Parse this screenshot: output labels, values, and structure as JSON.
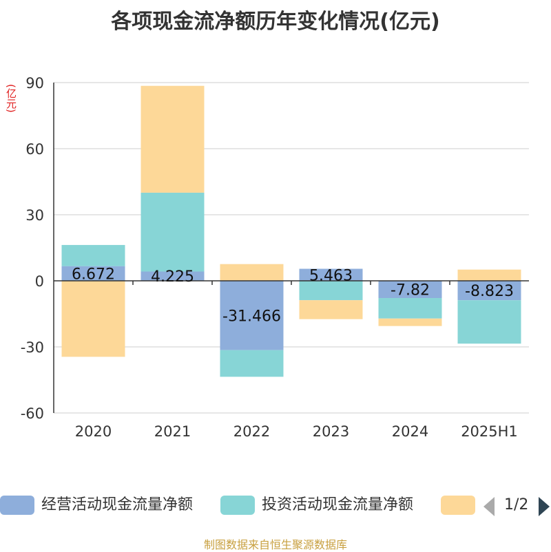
{
  "title": "各项现金流净额历年变化情况(亿元)",
  "unit": "(亿元)",
  "source": "制图数据来自恒生聚源数据库",
  "legend": {
    "items": [
      {
        "label": "经营活动现金流量净额",
        "color": "#8eaedb"
      },
      {
        "label": "投资活动现金流量净额",
        "color": "#87d5d6"
      },
      {
        "label": "",
        "color": "#fdd898"
      }
    ],
    "page": "1/2"
  },
  "chart_data": {
    "type": "bar",
    "stacked": true,
    "categories": [
      "2020",
      "2021",
      "2022",
      "2023",
      "2024",
      "2025H1"
    ],
    "ylim": [
      -60,
      90
    ],
    "yticks": [
      -60,
      -30,
      0,
      30,
      60,
      90
    ],
    "grid": true,
    "series": [
      {
        "name": "经营活动现金流量净额",
        "color": "#8eaedb",
        "values": [
          6.672,
          4.225,
          -31.466,
          5.463,
          -7.82,
          -8.823
        ],
        "labels": [
          "6.672",
          "4.225",
          "-31.466",
          "5.463",
          "-7.82",
          "-8.823"
        ]
      },
      {
        "name": "投资活动现金流量净额",
        "color": "#87d5d6",
        "values": [
          9.6,
          35.8,
          -12.1,
          -8.8,
          -9.3,
          -19.7
        ]
      },
      {
        "name": "",
        "color": "#fdd898",
        "values": [
          -34.5,
          48.5,
          7.6,
          -8.6,
          -3.4,
          5.1
        ]
      }
    ]
  }
}
